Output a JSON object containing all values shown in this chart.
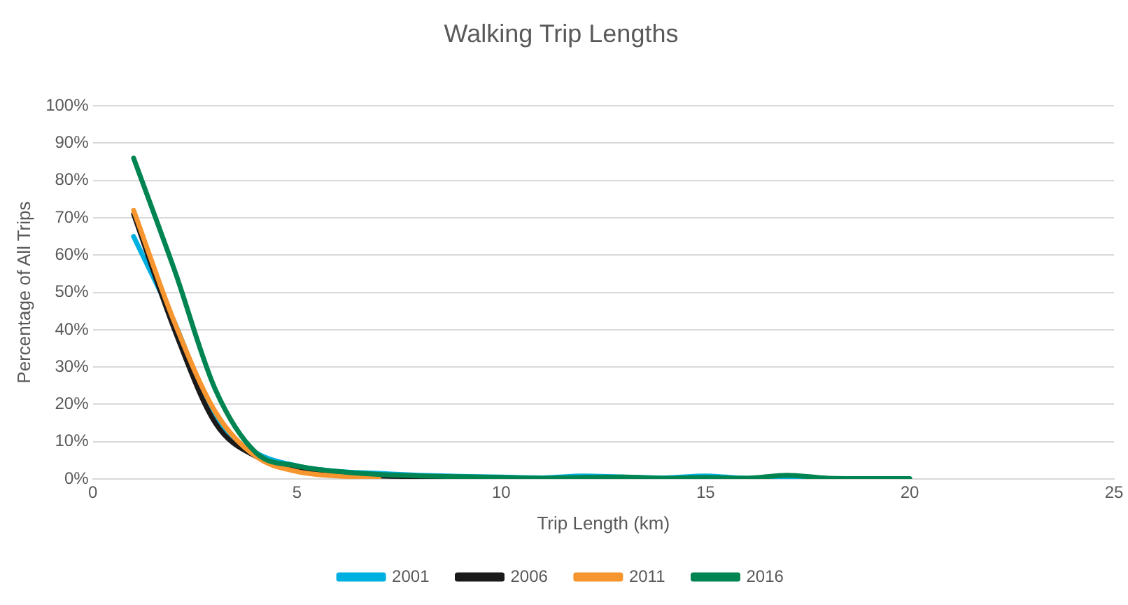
{
  "chart_data": {
    "type": "line",
    "title": "Walking Trip Lengths",
    "xlabel": "Trip Length (km)",
    "ylabel": "Percentage of All Trips",
    "x": [
      1,
      2,
      3,
      4,
      5,
      6,
      7,
      8,
      9,
      10,
      11,
      12,
      13,
      14,
      15,
      16,
      17,
      18,
      19,
      20
    ],
    "xlim": [
      0,
      25
    ],
    "xticks": [
      0,
      5,
      10,
      15,
      20,
      25
    ],
    "ylim": [
      0,
      100
    ],
    "yticks": [
      {
        "value": 0,
        "label": "0%"
      },
      {
        "value": 10,
        "label": "10%"
      },
      {
        "value": 20,
        "label": "20%"
      },
      {
        "value": 30,
        "label": "30%"
      },
      {
        "value": 40,
        "label": "40%"
      },
      {
        "value": 50,
        "label": "50%"
      },
      {
        "value": 60,
        "label": "60%"
      },
      {
        "value": 70,
        "label": "70%"
      },
      {
        "value": 80,
        "label": "80%"
      },
      {
        "value": 90,
        "label": "90%"
      },
      {
        "value": 100,
        "label": "100%"
      }
    ],
    "grid": "y",
    "legend": "bottom",
    "marker": "none",
    "line_style": "solid",
    "series": [
      {
        "name": "2001",
        "color": "#00b0e0",
        "values": [
          65,
          42,
          16,
          7,
          3.5,
          2,
          1.5,
          1,
          0.7,
          0.5,
          0.3,
          0.8,
          0.5,
          0.3,
          0.8,
          0.2,
          0.5,
          0.1,
          null,
          null
        ]
      },
      {
        "name": "2006",
        "color": "#1a1a1a",
        "values": [
          71,
          40,
          15,
          6,
          3,
          1.5,
          0.8,
          0.6,
          0.4,
          null,
          null,
          null,
          null,
          null,
          null,
          null,
          null,
          null,
          null,
          null
        ]
      },
      {
        "name": "2011",
        "color": "#f7952f",
        "values": [
          72,
          42,
          18,
          6,
          2,
          0.8,
          0.4,
          null,
          null,
          null,
          null,
          null,
          null,
          null,
          null,
          null,
          null,
          null,
          null,
          null
        ]
      },
      {
        "name": "2016",
        "color": "#008451",
        "values": [
          86,
          56,
          24,
          7,
          3.5,
          2,
          1.2,
          0.8,
          0.6,
          0.4,
          0.2,
          0.4,
          0.5,
          0.2,
          0.4,
          0.2,
          1,
          0.2,
          0.1,
          0.1
        ]
      }
    ]
  }
}
